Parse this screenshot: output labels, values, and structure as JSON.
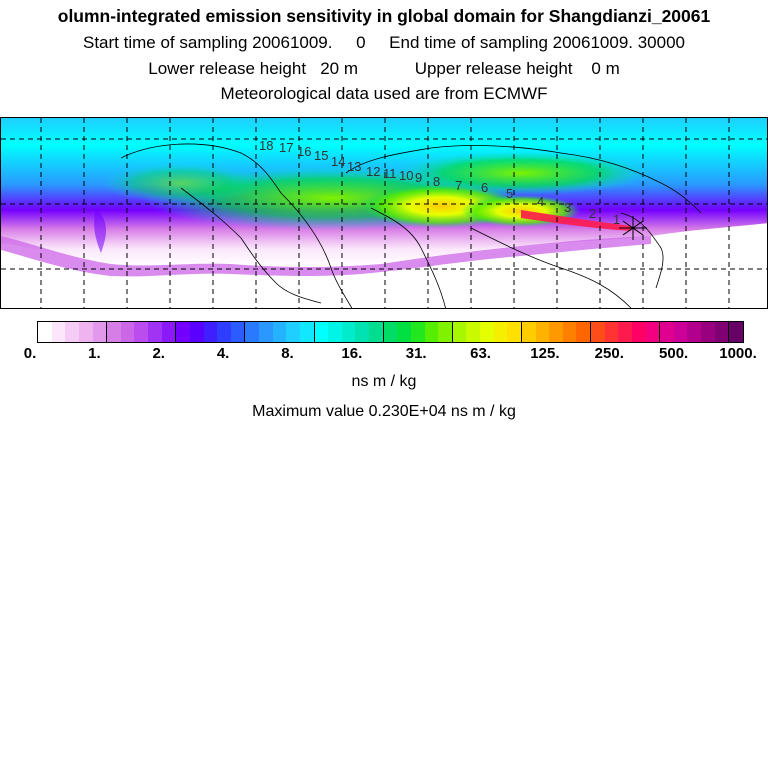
{
  "header": {
    "title": "olumn-integrated emission sensitivity in global domain for Shangdianzi_20061",
    "line1": "Start time of sampling 20061009.     0     End time of sampling 20061009. 30000",
    "line2": "Lower release height   20 m            Upper release height    0 m",
    "line3": "Meteorological data used are from ECMWF"
  },
  "map": {
    "type": "global emission sensitivity map",
    "station_marker": "star-marker",
    "trajectory_labels": [
      "18",
      "17",
      "16",
      "15",
      "14",
      "13",
      "12",
      "11",
      "10",
      "9",
      "8",
      "7",
      "6",
      "5",
      "4",
      "3",
      "2",
      "1"
    ]
  },
  "colorbar": {
    "tick_labels": [
      "0.",
      "1.",
      "2.",
      "4.",
      "8.",
      "16.",
      "31.",
      "63.",
      "125.",
      "250.",
      "500.",
      "1000."
    ],
    "colors": [
      "#ffffff",
      "#fbe6fb",
      "#f5ccf5",
      "#efb3f0",
      "#e399eb",
      "#d77ee6",
      "#cc66e8",
      "#bb4def",
      "#a033f4",
      "#8c1af8",
      "#7300ff",
      "#5a00ff",
      "#3f1fff",
      "#2f3dff",
      "#2a5cff",
      "#2a7aff",
      "#2a98ff",
      "#25b3ff",
      "#1ecfff",
      "#11e8ff",
      "#00ffff",
      "#00f5e6",
      "#00eccc",
      "#00e2b0",
      "#00dd8e",
      "#00dc66",
      "#00e040",
      "#22e61e",
      "#55ed00",
      "#80f200",
      "#a6f700",
      "#c8fb00",
      "#e6ff00",
      "#f5f000",
      "#ffe000",
      "#ffcc00",
      "#ffb300",
      "#ff9900",
      "#ff7f00",
      "#ff6600",
      "#ff4d1a",
      "#ff3333",
      "#ff1a4d",
      "#ff0066",
      "#f20080",
      "#e00090",
      "#cc0099",
      "#b3008c",
      "#990080",
      "#800073",
      "#660066"
    ],
    "unit_label": "ns m / kg"
  },
  "max_value": "Maximum value  0.230E+04 ns m / kg"
}
